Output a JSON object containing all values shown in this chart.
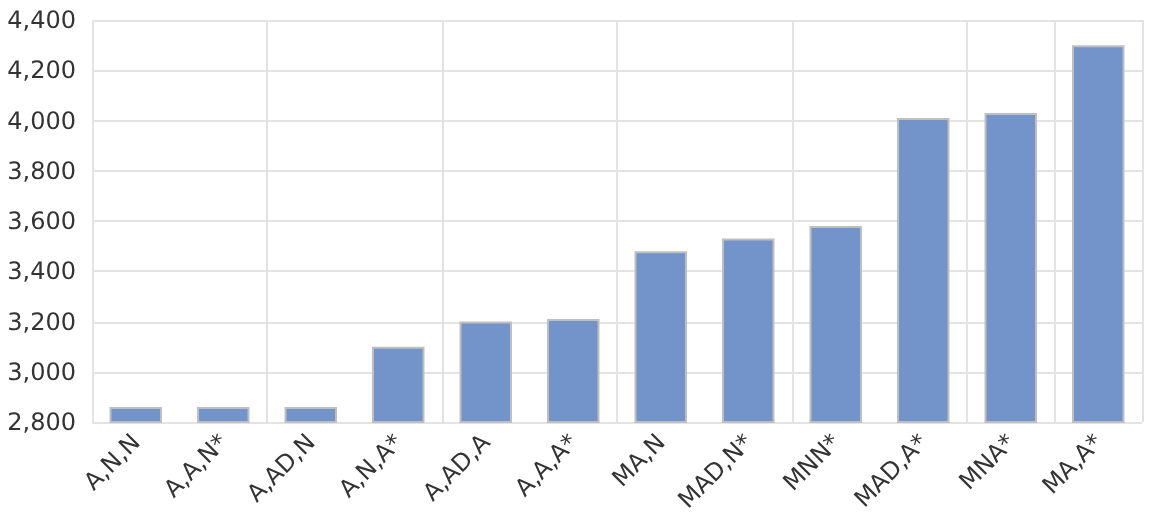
{
  "chart_data": {
    "type": "bar",
    "categories": [
      "A,N,N",
      "A,A,N*",
      "A,AD,N",
      "A,N,A*",
      "A,AD,A",
      "A,A,A*",
      "MA,N",
      "MAD,N*",
      "MNN*",
      "MAD,A*",
      "MNA*",
      "MA,A*"
    ],
    "values": [
      2860,
      2860,
      2860,
      3100,
      3200,
      3210,
      3480,
      3530,
      3580,
      4010,
      4030,
      4300
    ],
    "color": "#7393cb",
    "ylim": [
      2800,
      4400
    ],
    "yticks": [
      {
        "value": 2800,
        "label": "2,800"
      },
      {
        "value": 3000,
        "label": "3,000"
      },
      {
        "value": 3200,
        "label": "3,200"
      },
      {
        "value": 3400,
        "label": "3,400"
      },
      {
        "value": 3600,
        "label": "3,600"
      },
      {
        "value": 3800,
        "label": "3,800"
      },
      {
        "value": 4000,
        "label": "4,000"
      },
      {
        "value": 4200,
        "label": "4,200"
      },
      {
        "value": 4400,
        "label": "4,400"
      }
    ],
    "grid": true
  }
}
